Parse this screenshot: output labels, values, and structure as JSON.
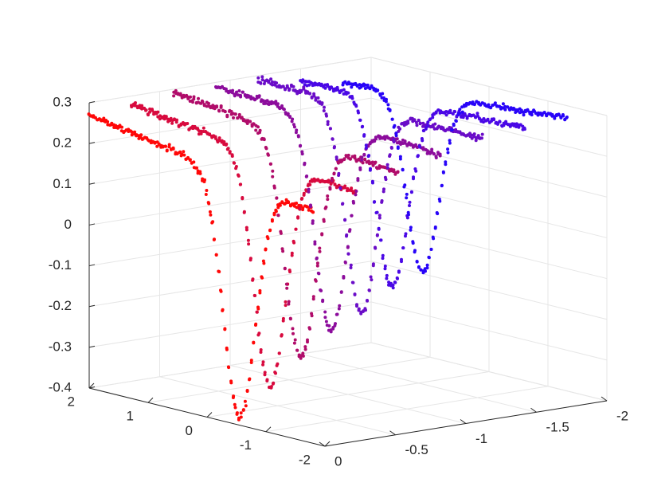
{
  "chart_data": {
    "type": "scatter",
    "view": "3d",
    "grid": true,
    "title": "",
    "xlabel": "",
    "ylabel": "",
    "zlabel": "",
    "xlim": [
      -2,
      2
    ],
    "ylim": [
      -2,
      0
    ],
    "zlim": [
      -0.4,
      0.3
    ],
    "z_ticks": [
      {
        "value": 0.3,
        "label": "0.3"
      },
      {
        "value": 0.2,
        "label": "0.2"
      },
      {
        "value": 0.1,
        "label": "0.1"
      },
      {
        "value": 0,
        "label": "0"
      },
      {
        "value": -0.1,
        "label": "-0.1"
      },
      {
        "value": -0.2,
        "label": "-0.2"
      },
      {
        "value": -0.3,
        "label": "-0.3"
      },
      {
        "value": -0.4,
        "label": "-0.4"
      }
    ],
    "x_ticks": [
      {
        "value": 2,
        "label": "2"
      },
      {
        "value": 1,
        "label": "1"
      },
      {
        "value": 0,
        "label": "0"
      },
      {
        "value": -1,
        "label": "-1"
      },
      {
        "value": -2,
        "label": "-2"
      }
    ],
    "y_ticks": [
      {
        "value": 0,
        "label": "0"
      },
      {
        "value": -0.5,
        "label": "-0.5"
      },
      {
        "value": -1,
        "label": "-1"
      },
      {
        "value": -1.5,
        "label": "-1.5"
      },
      {
        "value": -2,
        "label": "-2"
      }
    ],
    "color_gradient": {
      "start": "#ff0000",
      "end": "#2000ff"
    },
    "series": [
      {
        "y": 0.0,
        "trough_x": -0.55,
        "trough_z": -0.38,
        "start_z": 0.27,
        "end_z": 0.17,
        "color": "#ff0808"
      },
      {
        "y": -0.3,
        "trough_x": -0.35,
        "trough_z": -0.33,
        "start_z": 0.28,
        "end_z": 0.2,
        "color": "#d80a3e"
      },
      {
        "y": -0.6,
        "trough_x": -0.15,
        "trough_z": -0.28,
        "start_z": 0.29,
        "end_z": 0.23,
        "color": "#b00c6a"
      },
      {
        "y": -0.9,
        "trough_x": 0.05,
        "trough_z": -0.24,
        "start_z": 0.29,
        "end_z": 0.26,
        "color": "#8c0c9c"
      },
      {
        "y": -1.2,
        "trough_x": 0.25,
        "trough_z": -0.22,
        "start_z": 0.29,
        "end_z": 0.28,
        "color": "#6a0cc8"
      },
      {
        "y": -1.5,
        "trough_x": 0.45,
        "trough_z": -0.18,
        "start_z": 0.27,
        "end_z": 0.29,
        "color": "#4a08e6"
      },
      {
        "y": -1.8,
        "trough_x": 0.65,
        "trough_z": -0.17,
        "start_z": 0.25,
        "end_z": 0.3,
        "color": "#2804f8"
      }
    ]
  }
}
